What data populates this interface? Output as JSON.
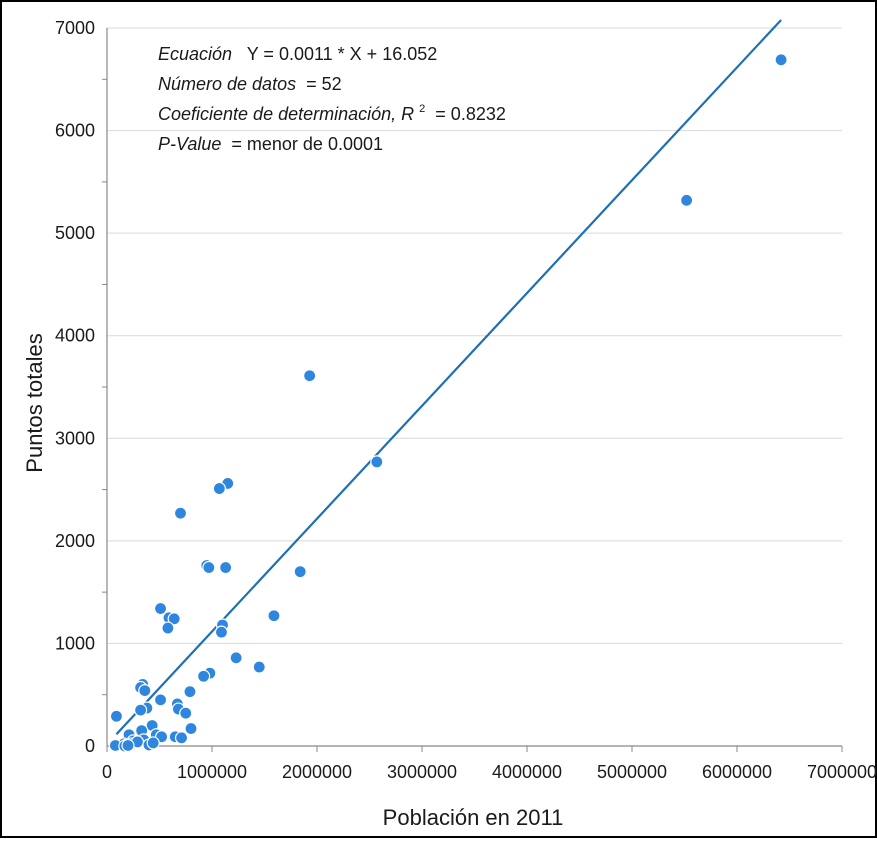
{
  "chart_data": {
    "type": "scatter",
    "xlabel": "Población en 2011",
    "ylabel": "Puntos totales",
    "xlim": [
      0,
      7000000
    ],
    "ylim": [
      0,
      7000
    ],
    "x_ticks": [
      0,
      1000000,
      2000000,
      3000000,
      4000000,
      5000000,
      6000000,
      7000000
    ],
    "y_ticks": [
      0,
      1000,
      2000,
      3000,
      4000,
      5000,
      6000,
      7000
    ],
    "grid": "horizontal",
    "point_color": "#2e86de",
    "line_color": "#1f6fb4",
    "annotations": {
      "line1_italic": "Ecuación",
      "line1_rest": "Y = 0.0011 * X + 16.052",
      "line2_italic": "Número de datos",
      "line2_rest": "= 52",
      "line3_italic": "Coeficiente de determinación, R",
      "line3_sup": "2",
      "line3_rest": "= 0.8232",
      "line4_italic": "P-Value",
      "line4_rest": "= menor de 0.0001"
    },
    "regression": {
      "slope": 0.0011,
      "intercept": 16.052,
      "x_range": [
        90000,
        6420000
      ]
    },
    "points": [
      [
        6420000,
        6690
      ],
      [
        5520000,
        5320
      ],
      [
        1930000,
        3610
      ],
      [
        2570000,
        2770
      ],
      [
        1150000,
        2560
      ],
      [
        1070000,
        2510
      ],
      [
        700000,
        2270
      ],
      [
        950000,
        1760
      ],
      [
        970000,
        1740
      ],
      [
        1130000,
        1740
      ],
      [
        1840000,
        1700
      ],
      [
        510000,
        1340
      ],
      [
        590000,
        1250
      ],
      [
        640000,
        1240
      ],
      [
        580000,
        1150
      ],
      [
        1590000,
        1270
      ],
      [
        1100000,
        1180
      ],
      [
        1090000,
        1110
      ],
      [
        1230000,
        860
      ],
      [
        1450000,
        770
      ],
      [
        980000,
        710
      ],
      [
        920000,
        680
      ],
      [
        340000,
        600
      ],
      [
        320000,
        570
      ],
      [
        360000,
        540
      ],
      [
        790000,
        530
      ],
      [
        510000,
        450
      ],
      [
        670000,
        410
      ],
      [
        680000,
        360
      ],
      [
        380000,
        370
      ],
      [
        320000,
        350
      ],
      [
        750000,
        320
      ],
      [
        90000,
        290
      ],
      [
        430000,
        200
      ],
      [
        800000,
        170
      ],
      [
        330000,
        150
      ],
      [
        210000,
        110
      ],
      [
        470000,
        110
      ],
      [
        520000,
        90
      ],
      [
        650000,
        90
      ],
      [
        710000,
        80
      ],
      [
        250000,
        50
      ],
      [
        350000,
        60
      ],
      [
        160000,
        20
      ],
      [
        190000,
        10
      ],
      [
        230000,
        20
      ],
      [
        290000,
        40
      ],
      [
        400000,
        10
      ],
      [
        80000,
        5
      ],
      [
        170000,
        0
      ],
      [
        440000,
        30
      ],
      [
        200000,
        5
      ]
    ]
  }
}
